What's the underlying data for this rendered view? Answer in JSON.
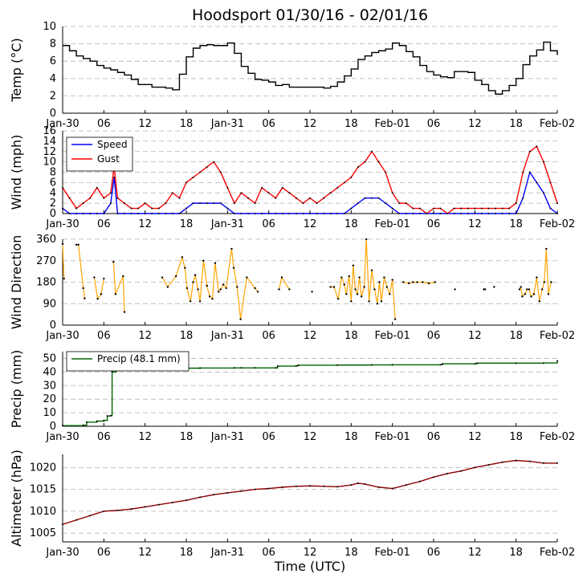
{
  "chart_data": {
    "type": "line",
    "title": "Hoodsport 01/30/16 - 02/01/16",
    "xlabel": "Time (UTC)",
    "x_range_hours": [
      0,
      72
    ],
    "x_ticks": [
      {
        "h": 0,
        "label": "Jan-30"
      },
      {
        "h": 6,
        "label": "06"
      },
      {
        "h": 12,
        "label": "12"
      },
      {
        "h": 18,
        "label": "18"
      },
      {
        "h": 24,
        "label": "Jan-31"
      },
      {
        "h": 30,
        "label": "06"
      },
      {
        "h": 36,
        "label": "12"
      },
      {
        "h": 42,
        "label": "18"
      },
      {
        "h": 48,
        "label": "Feb-01"
      },
      {
        "h": 54,
        "label": "06"
      },
      {
        "h": 60,
        "label": "12"
      },
      {
        "h": 66,
        "label": "18"
      },
      {
        "h": 72,
        "label": "Feb-02"
      }
    ],
    "panels": [
      {
        "id": "temp",
        "ylabel": "Temp (°C)",
        "ylim": [
          0,
          10
        ],
        "yticks": [
          0,
          2,
          4,
          6,
          8,
          10
        ],
        "series": [
          {
            "name": "Temp",
            "color": "#000000",
            "style": "step",
            "x": [
              0,
              1,
              2,
              3,
              4,
              5,
              6,
              7,
              8,
              9,
              10,
              11,
              12,
              13,
              14,
              15,
              16,
              17,
              18,
              19,
              20,
              21,
              22,
              23,
              24,
              25,
              26,
              27,
              28,
              29,
              30,
              31,
              32,
              33,
              34,
              35,
              36,
              37,
              38,
              39,
              40,
              41,
              42,
              43,
              44,
              45,
              46,
              47,
              48,
              49,
              50,
              51,
              52,
              53,
              54,
              55,
              56,
              57,
              58,
              59,
              60,
              61,
              62,
              63,
              64,
              65,
              66,
              67,
              68,
              69,
              70,
              71,
              72
            ],
            "y": [
              7.8,
              7.2,
              6.6,
              6.3,
              6.0,
              5.5,
              5.2,
              5.0,
              4.7,
              4.4,
              3.9,
              3.3,
              3.3,
              3.0,
              3.0,
              2.9,
              2.7,
              4.5,
              6.5,
              7.5,
              7.8,
              7.9,
              7.8,
              7.8,
              8.1,
              6.9,
              5.4,
              4.6,
              3.9,
              3.8,
              3.6,
              3.2,
              3.3,
              3.0,
              3.0,
              3.0,
              3.0,
              3.0,
              2.9,
              3.1,
              3.6,
              4.3,
              5.1,
              6.2,
              6.6,
              7.0,
              7.2,
              7.4,
              8.1,
              7.8,
              7.1,
              6.5,
              5.5,
              4.8,
              4.4,
              4.2,
              4.1,
              4.8,
              4.8,
              4.7,
              3.8,
              3.3,
              2.6,
              2.2,
              2.6,
              3.2,
              4.0,
              5.6,
              6.6,
              7.3,
              8.2,
              7.2,
              6.7
            ]
          }
        ]
      },
      {
        "id": "wind",
        "ylabel": "Wind (mph)",
        "ylim": [
          0,
          16
        ],
        "yticks": [
          0,
          2,
          4,
          6,
          8,
          10,
          12,
          14,
          16
        ],
        "legend": {
          "position": "top-left",
          "entries": [
            "Speed",
            "Gust"
          ]
        },
        "series": [
          {
            "name": "Speed",
            "color": "#0000ff",
            "x": [
              0,
              1,
              2,
              3,
              4,
              5,
              6,
              7,
              7.5,
              8,
              9,
              10,
              11,
              12,
              13,
              14,
              15,
              16,
              17,
              18,
              19,
              20,
              21,
              22,
              23,
              24,
              25,
              26,
              27,
              28,
              29,
              30,
              31,
              32,
              33,
              34,
              35,
              36,
              37,
              38,
              39,
              40,
              41,
              42,
              43,
              44,
              45,
              46,
              47,
              48,
              49,
              50,
              51,
              52,
              53,
              54,
              55,
              56,
              57,
              58,
              59,
              60,
              61,
              62,
              63,
              64,
              65,
              66,
              67,
              68,
              69,
              70,
              71,
              72
            ],
            "y": [
              1,
              0,
              0,
              0,
              0,
              0,
              0,
              2,
              7,
              0,
              0,
              0,
              0,
              0,
              0,
              0,
              0,
              0,
              0,
              1,
              2,
              2,
              2,
              2,
              2,
              1,
              0,
              0,
              0,
              0,
              0,
              0,
              0,
              0,
              0,
              0,
              0,
              0,
              0,
              0,
              0,
              0,
              0,
              1,
              2,
              3,
              3,
              3,
              2,
              1,
              0,
              0,
              0,
              0,
              0,
              0,
              0,
              0,
              0,
              0,
              0,
              0,
              0,
              0,
              0,
              0,
              0,
              0,
              3,
              8,
              6,
              4,
              1,
              0
            ]
          },
          {
            "name": "Gust",
            "color": "#ff0000",
            "x": [
              0,
              1,
              2,
              3,
              4,
              5,
              6,
              7,
              7.5,
              8,
              9,
              10,
              11,
              12,
              13,
              14,
              15,
              16,
              17,
              18,
              19,
              20,
              21,
              22,
              23,
              24,
              25,
              26,
              27,
              28,
              29,
              30,
              31,
              32,
              33,
              34,
              35,
              36,
              37,
              38,
              39,
              40,
              41,
              42,
              43,
              44,
              45,
              46,
              47,
              48,
              49,
              50,
              51,
              52,
              53,
              54,
              55,
              56,
              57,
              58,
              59,
              60,
              61,
              62,
              63,
              64,
              65,
              66,
              67,
              68,
              69,
              70,
              71,
              72
            ],
            "y": [
              5,
              3,
              1,
              2,
              3,
              5,
              3,
              4,
              9,
              3,
              2,
              1,
              1,
              2,
              1,
              1,
              2,
              4,
              3,
              6,
              7,
              8,
              9,
              10,
              8,
              5,
              2,
              4,
              3,
              2,
              5,
              4,
              3,
              5,
              4,
              3,
              2,
              3,
              2,
              3,
              4,
              5,
              6,
              7,
              9,
              10,
              12,
              10,
              8,
              4,
              2,
              2,
              1,
              1,
              0,
              1,
              1,
              0,
              1,
              1,
              1,
              1,
              1,
              1,
              1,
              1,
              1,
              2,
              8,
              12,
              13,
              10,
              6,
              2
            ]
          }
        ]
      },
      {
        "id": "wdir",
        "ylabel": "Wind Direction",
        "ylim": [
          0,
          360
        ],
        "yticks": [
          0,
          90,
          180,
          270,
          360
        ],
        "series": [
          {
            "name": "Direction",
            "color": "#ffa500",
            "style": "dots-line",
            "x": [
              0,
              0.2,
              2,
              2.3,
              3,
              3.2,
              4.6,
              5.1,
              5.6,
              6.0,
              7.4,
              7.7,
              8.8,
              9.0,
              14.5,
              15.3,
              16.5,
              17.4,
              17.8,
              18.1,
              18.6,
              19.0,
              19.3,
              19.7,
              20.0,
              20.5,
              21.0,
              21.4,
              21.8,
              22.2,
              22.7,
              23.0,
              23.4,
              23.8,
              24.6,
              24.9,
              25.4,
              25.9,
              26.8,
              28.0,
              28.4,
              31.5,
              31.9,
              33.0,
              36.3,
              39.0,
              39.5,
              40.1,
              40.6,
              41.0,
              41.3,
              41.7,
              42.0,
              42.3,
              42.6,
              42.9,
              43.2,
              43.5,
              43.9,
              44.2,
              44.6,
              45.0,
              45.4,
              45.8,
              46.1,
              46.4,
              46.8,
              47.2,
              47.6,
              48.0,
              48.4,
              49.6,
              50.4,
              51.0,
              51.6,
              52.4,
              53.3,
              54.2,
              57.1,
              61.3,
              61.5,
              62.8,
              66.5,
              66.7,
              66.9,
              67.3,
              67.6,
              67.9,
              68.2,
              68.6,
              69.0,
              69.4,
              69.8,
              70.1,
              70.4,
              70.7,
              71.1
            ],
            "y": [
              340,
              195,
              337,
              337,
              155,
              112,
              200,
              110,
              130,
              195,
              265,
              130,
              205,
              55,
              200,
              160,
              205,
              285,
              240,
              155,
              100,
              180,
              210,
              150,
              100,
              270,
              165,
              120,
              110,
              260,
              140,
              150,
              170,
              155,
              320,
              240,
              160,
              25,
              200,
              155,
              140,
              150,
              200,
              150,
              140,
              160,
              160,
              110,
              200,
              170,
              130,
              205,
              100,
              250,
              150,
              130,
              200,
              120,
              160,
              360,
              100,
              230,
              150,
              90,
              180,
              100,
              200,
              160,
              130,
              190,
              25,
              180,
              175,
              180,
              180,
              180,
              175,
              180,
              150,
              150,
              150,
              160,
              150,
              160,
              120,
              130,
              150,
              150,
              120,
              130,
              200,
              100,
              150,
              180,
              320,
              130,
              180
            ]
          }
        ]
      },
      {
        "id": "precip",
        "ylabel": "Precip (mm)",
        "ylim": [
          0,
          55
        ],
        "yticks": [
          0,
          10,
          20,
          30,
          40,
          50
        ],
        "legend": {
          "position": "top-left",
          "entries": [
            "Precip (48.1 mm)"
          ]
        },
        "series": [
          {
            "name": "Precip (48.1 mm)",
            "color": "#006400",
            "style": "step",
            "x": [
              0,
              3,
              3.5,
              5,
              6,
              6.5,
              7,
              7.2,
              7.8,
              8.5,
              9.5,
              10,
              12,
              15,
              20,
              25,
              26,
              28,
              31,
              31.3,
              34,
              34.3,
              40,
              45,
              48,
              55,
              55.3,
              60,
              60.3,
              66,
              70,
              72
            ],
            "y": [
              0.5,
              0.8,
              3.0,
              3.8,
              4.3,
              7.6,
              7.8,
              40.0,
              41.0,
              41.5,
              42.2,
              42.5,
              42.7,
              42.8,
              42.9,
              43.0,
              43.0,
              43.0,
              43.0,
              44.3,
              44.5,
              45.0,
              45.1,
              45.2,
              45.3,
              45.4,
              46.0,
              46.0,
              46.5,
              46.5,
              46.6,
              48.1
            ]
          }
        ]
      },
      {
        "id": "alt",
        "ylabel": "Altimeter (hPa)",
        "ylim": [
          1003,
          1023
        ],
        "yticks": [
          1005,
          1010,
          1015,
          1020
        ],
        "series": [
          {
            "name": "Altimeter",
            "color": "#8b0000",
            "style": "line",
            "x": [
              0,
              2,
              4,
              6,
              8,
              10,
              12,
              14,
              16,
              18,
              20,
              22,
              24,
              26,
              28,
              30,
              32,
              34,
              36,
              38,
              40,
              42,
              43,
              44,
              46,
              48,
              50,
              52,
              54,
              56,
              58,
              60,
              62,
              64,
              66,
              68,
              70,
              72
            ],
            "y": [
              1007.0,
              1008.0,
              1009.0,
              1010.0,
              1010.2,
              1010.5,
              1011.0,
              1011.5,
              1012.0,
              1012.5,
              1013.2,
              1013.8,
              1014.2,
              1014.6,
              1015.0,
              1015.2,
              1015.5,
              1015.7,
              1015.8,
              1015.7,
              1015.6,
              1016.0,
              1016.4,
              1016.2,
              1015.5,
              1015.2,
              1016.0,
              1016.8,
              1017.8,
              1018.6,
              1019.2,
              1020.0,
              1020.6,
              1021.2,
              1021.6,
              1021.4,
              1021.0,
              1021.0
            ]
          }
        ]
      }
    ]
  }
}
